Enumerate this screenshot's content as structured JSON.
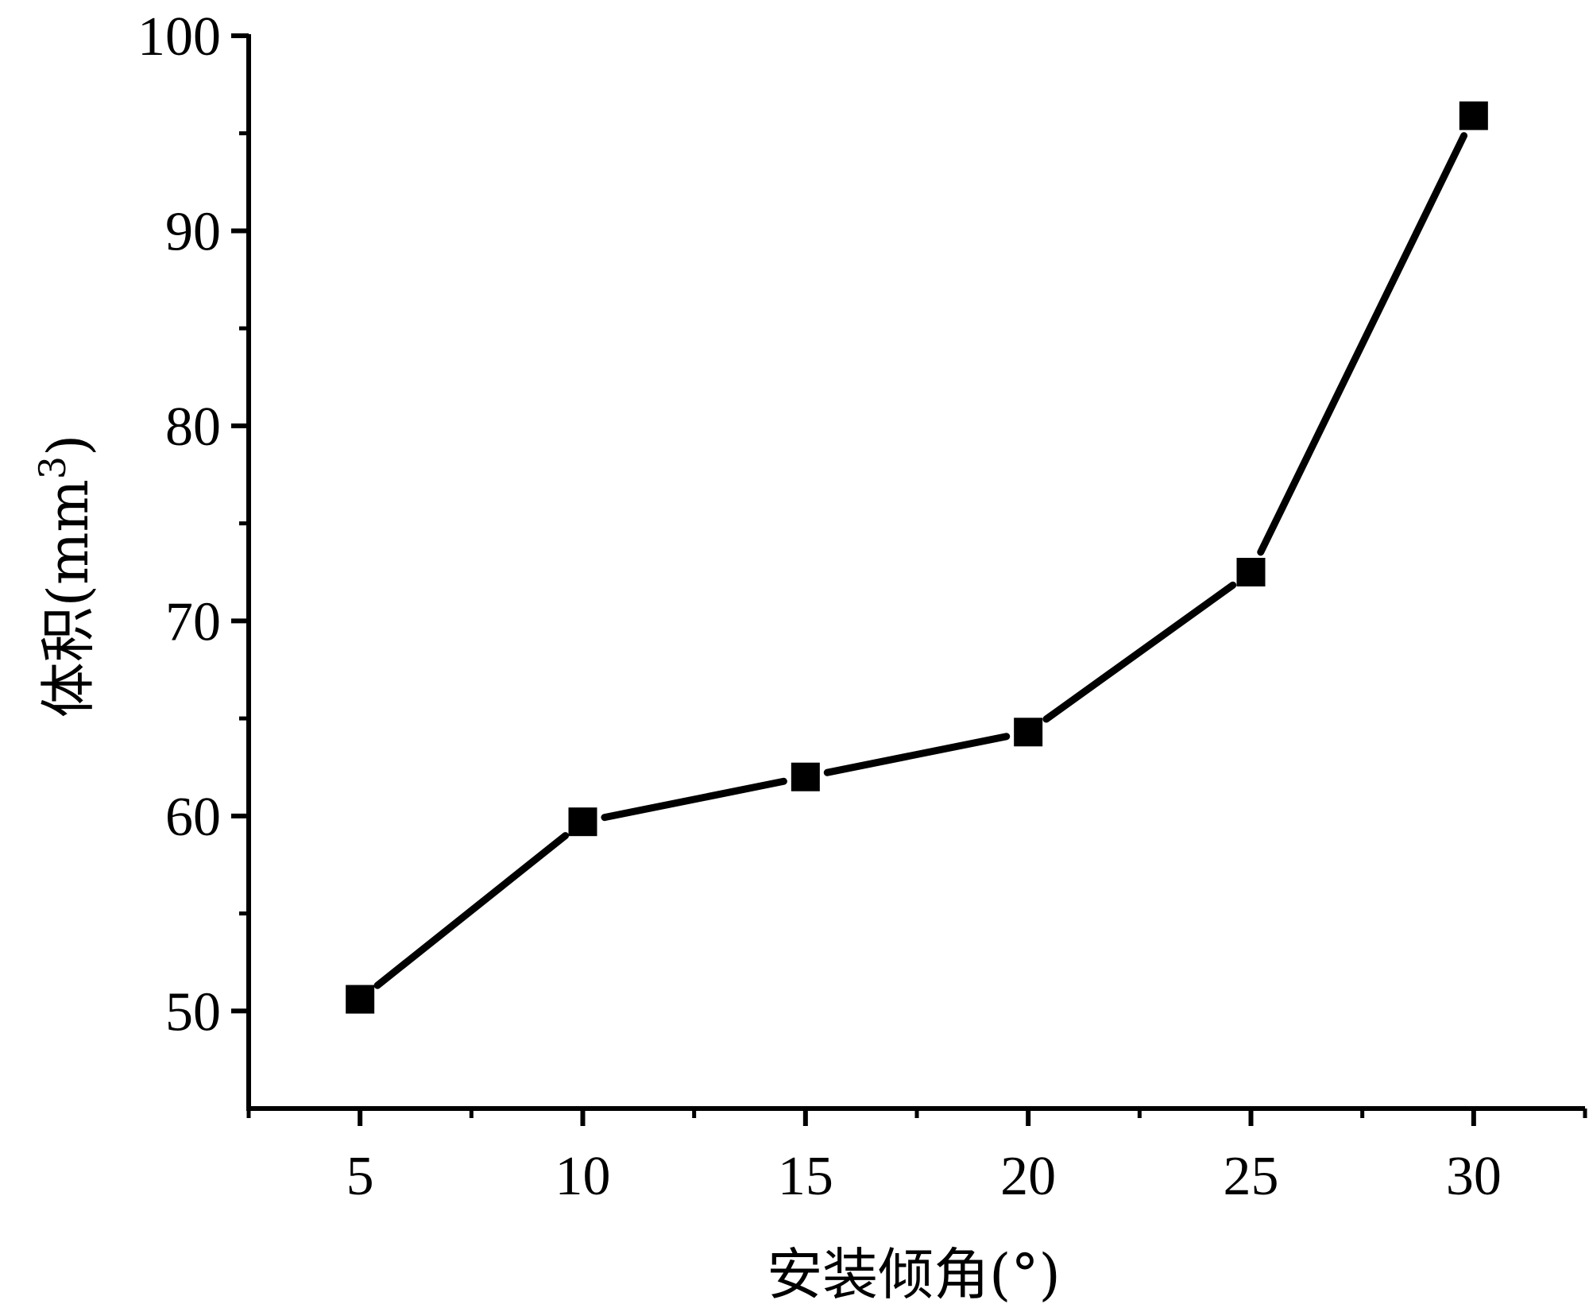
{
  "chart_data": {
    "type": "line",
    "title": "",
    "xlabel": "安装倾角(°)",
    "ylabel_main": "体积(mm",
    "ylabel_sup": "3",
    "ylabel_end": ")",
    "x": [
      5,
      10,
      15,
      20,
      25,
      30
    ],
    "y": [
      50.6,
      59.7,
      62.0,
      64.3,
      72.5,
      95.9
    ],
    "xlim": [
      2.5,
      32.5
    ],
    "ylim": [
      45,
      100
    ],
    "xticks": [
      5,
      10,
      15,
      20,
      25,
      30
    ],
    "yticks": [
      50,
      60,
      70,
      80,
      90,
      100
    ],
    "grid": false,
    "marker": "square",
    "line_color": "#000000",
    "marker_color": "#000000"
  }
}
